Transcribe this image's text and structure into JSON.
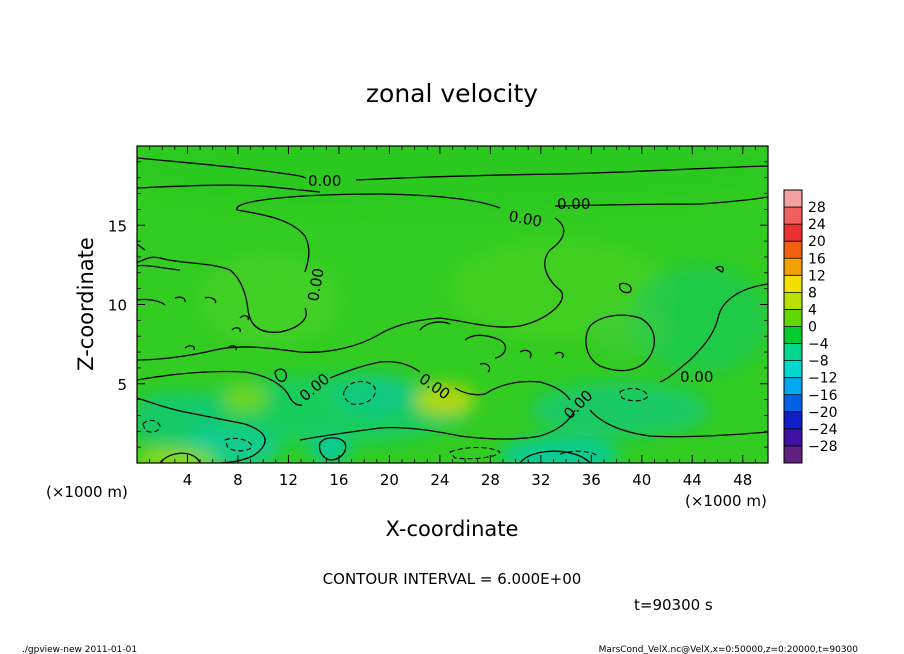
{
  "chart_data": {
    "type": "heatmap",
    "title": "zonal velocity",
    "xlabel": "X-coordinate",
    "ylabel": "Z-coordinate",
    "x_unit_label": "(×1000 m)",
    "y_unit_label": "(×1000 m)",
    "xlim": [
      0,
      50
    ],
    "ylim": [
      0,
      20
    ],
    "x_ticks": [
      4,
      8,
      12,
      16,
      20,
      24,
      28,
      32,
      36,
      40,
      44,
      48
    ],
    "y_ticks": [
      5,
      10,
      15
    ],
    "colorbar": {
      "labels": [
        "28",
        "24",
        "20",
        "16",
        "12",
        "8",
        "4",
        "0",
        "−4",
        "−8",
        "−12",
        "−16",
        "−20",
        "−24",
        "−28"
      ],
      "colors": [
        "#f4a0a0",
        "#f06060",
        "#ea3030",
        "#f06010",
        "#f4a000",
        "#f0e000",
        "#b8e000",
        "#60d800",
        "#00cc30",
        "#00d890",
        "#00d8d0",
        "#00a8f0",
        "#0060e8",
        "#1020c8",
        "#4010a0",
        "#602080"
      ]
    },
    "contour_labels": [
      "0.00",
      "0.00",
      "0.00",
      "0.00",
      "0.00",
      "0.00",
      "0.00",
      "0.00"
    ],
    "contour_interval_text": "CONTOUR INTERVAL = 6.000E+00",
    "time_text": "t=90300 s"
  },
  "footer": {
    "left": "./gpview-new  2011-01-01",
    "right": "MarsCond_VelX.nc@VelX,x=0:50000,z=0:20000,t=90300"
  }
}
